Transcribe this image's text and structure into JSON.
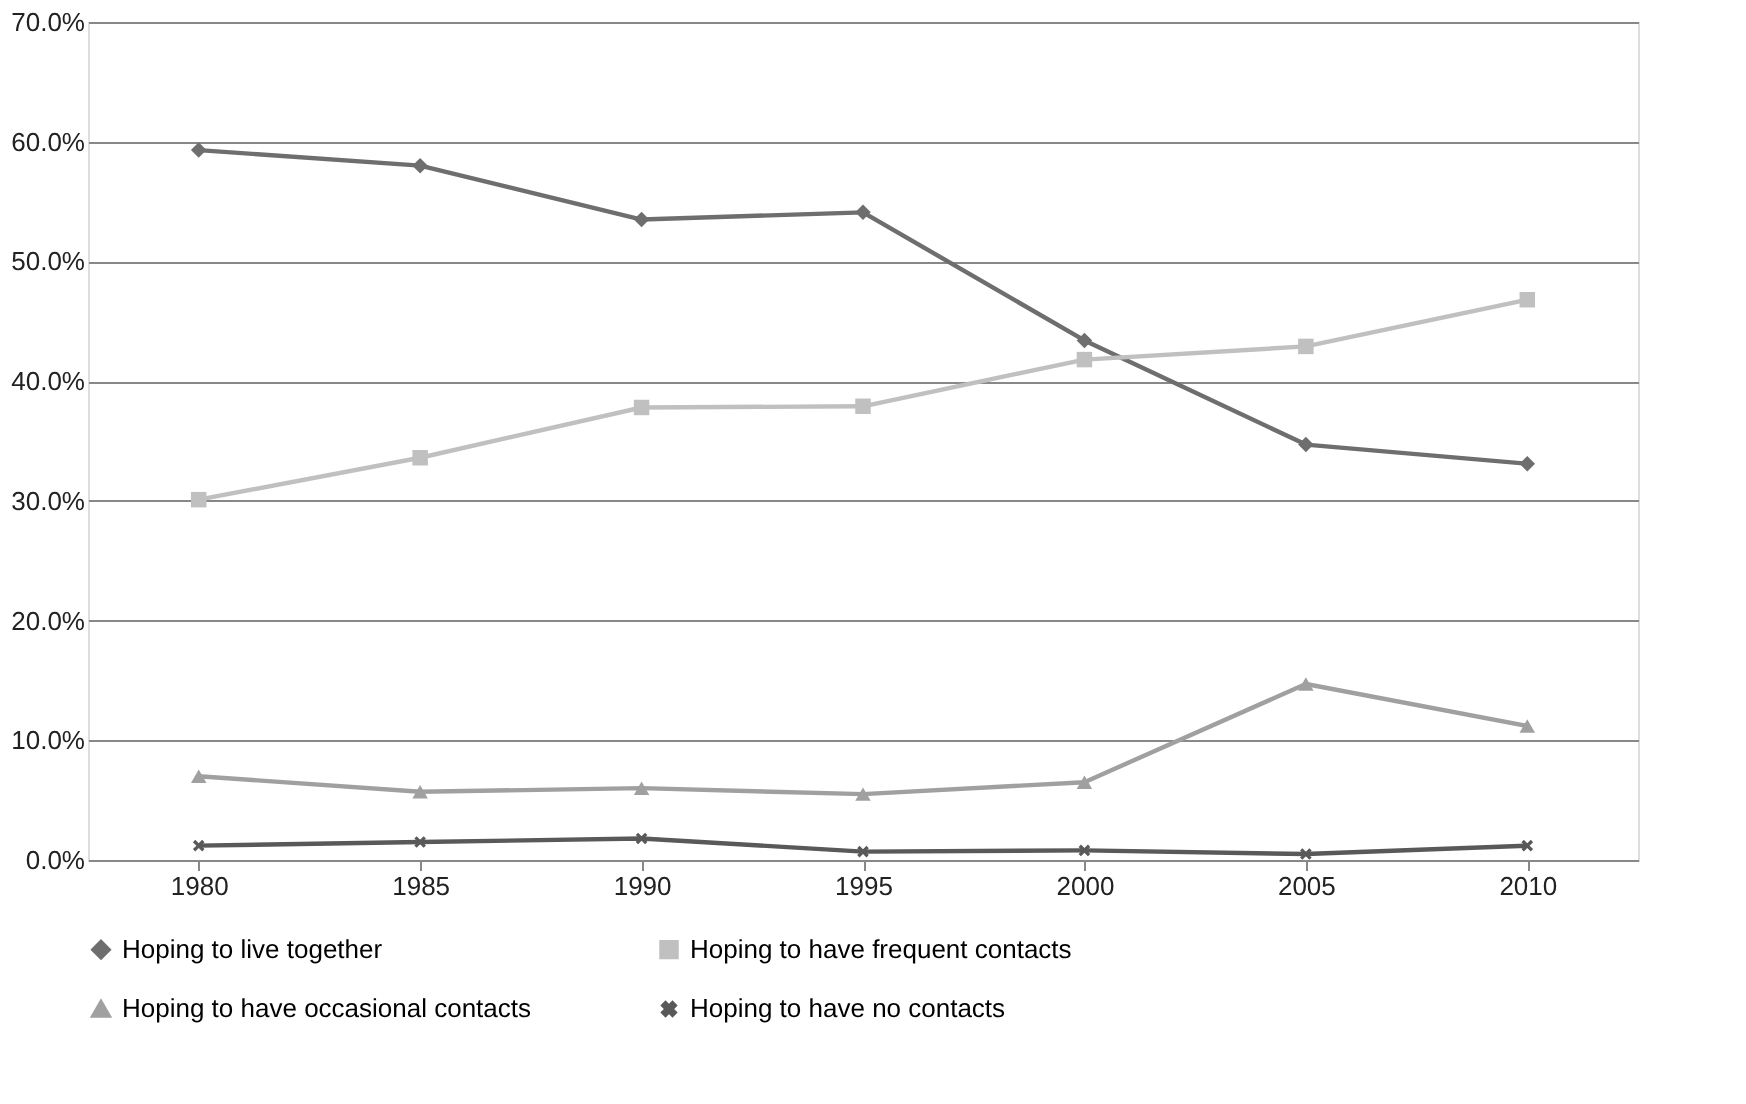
{
  "chart_data": {
    "type": "line",
    "categories": [
      "1980",
      "1985",
      "1990",
      "1995",
      "2000",
      "2005",
      "2010"
    ],
    "series": [
      {
        "name": "Hoping to live together",
        "color": "#6e6e6e",
        "marker": "diamond",
        "values": [
          59.3,
          58.0,
          53.5,
          54.1,
          43.4,
          34.7,
          33.1
        ]
      },
      {
        "name": "Hoping to have frequent contacts",
        "color": "#c0c0c0",
        "marker": "square",
        "values": [
          30.1,
          33.6,
          37.8,
          37.9,
          41.8,
          42.9,
          46.8
        ]
      },
      {
        "name": "Hoping to have occasional contacts",
        "color": "#a0a0a0",
        "marker": "triangle",
        "values": [
          7.0,
          5.7,
          6.0,
          5.5,
          6.5,
          14.7,
          11.2
        ]
      },
      {
        "name": "Hoping to have no contacts",
        "color": "#595959",
        "marker": "cross",
        "values": [
          1.2,
          1.5,
          1.8,
          0.7,
          0.8,
          0.5,
          1.2
        ]
      }
    ],
    "ylim": [
      0,
      70
    ],
    "yticks": [
      {
        "value": 0,
        "label": "0.0%"
      },
      {
        "value": 10,
        "label": "10.0%"
      },
      {
        "value": 20,
        "label": "20.0%"
      },
      {
        "value": 30,
        "label": "30.0%"
      },
      {
        "value": 40,
        "label": "40.0%"
      },
      {
        "value": 50,
        "label": "50.0%"
      },
      {
        "value": 60,
        "label": "60.0%"
      },
      {
        "value": 70,
        "label": "70.0%"
      }
    ],
    "grid": "y",
    "legend": "bottom",
    "line_style": "solid"
  }
}
